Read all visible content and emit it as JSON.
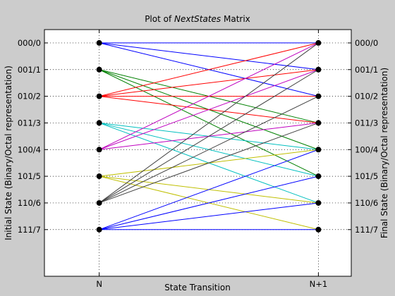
{
  "chart_data": {
    "type": "line",
    "title": {
      "prefix": "Plot of ",
      "emphasis": "NextStates",
      "suffix": " Matrix"
    },
    "xlabel": "State Transition",
    "ylabel_left": "Initial State (Binary/Octal representation)",
    "ylabel_right": "Final State (Binary/Octal representation)",
    "x_categories": [
      "N",
      "N+1"
    ],
    "xlim": [
      0.75,
      2.15
    ],
    "ylim": [
      -0.5,
      8.75
    ],
    "y_reversed": true,
    "grid": "dotted",
    "states": [
      "000/0",
      "001/1",
      "010/2",
      "011/3",
      "100/4",
      "101/5",
      "110/6",
      "111/7"
    ],
    "series": [
      {
        "color": "#0000ff",
        "values": [
          [
            0,
            0
          ],
          [
            0,
            1
          ],
          [
            0,
            2
          ]
        ]
      },
      {
        "color": "#008000",
        "values": [
          [
            1,
            3
          ],
          [
            1,
            4
          ],
          [
            1,
            5
          ]
        ]
      },
      {
        "color": "#ff0000",
        "values": [
          [
            2,
            0
          ],
          [
            2,
            1
          ],
          [
            2,
            2
          ],
          [
            2,
            3
          ]
        ]
      },
      {
        "color": "#00bfbf",
        "values": [
          [
            3,
            4
          ],
          [
            3,
            5
          ],
          [
            3,
            6
          ]
        ]
      },
      {
        "color": "#bf00bf",
        "values": [
          [
            4,
            0
          ],
          [
            4,
            1
          ],
          [
            4,
            3
          ]
        ]
      },
      {
        "color": "#bfbf00",
        "values": [
          [
            5,
            4
          ],
          [
            5,
            6
          ],
          [
            5,
            7
          ]
        ]
      },
      {
        "color": "#404040",
        "values": [
          [
            6,
            0
          ],
          [
            6,
            1
          ],
          [
            6,
            2
          ],
          [
            6,
            3
          ]
        ]
      },
      {
        "color": "#0000ff",
        "values": [
          [
            7,
            4
          ],
          [
            7,
            5
          ],
          [
            7,
            6
          ],
          [
            7,
            7
          ]
        ]
      }
    ]
  }
}
